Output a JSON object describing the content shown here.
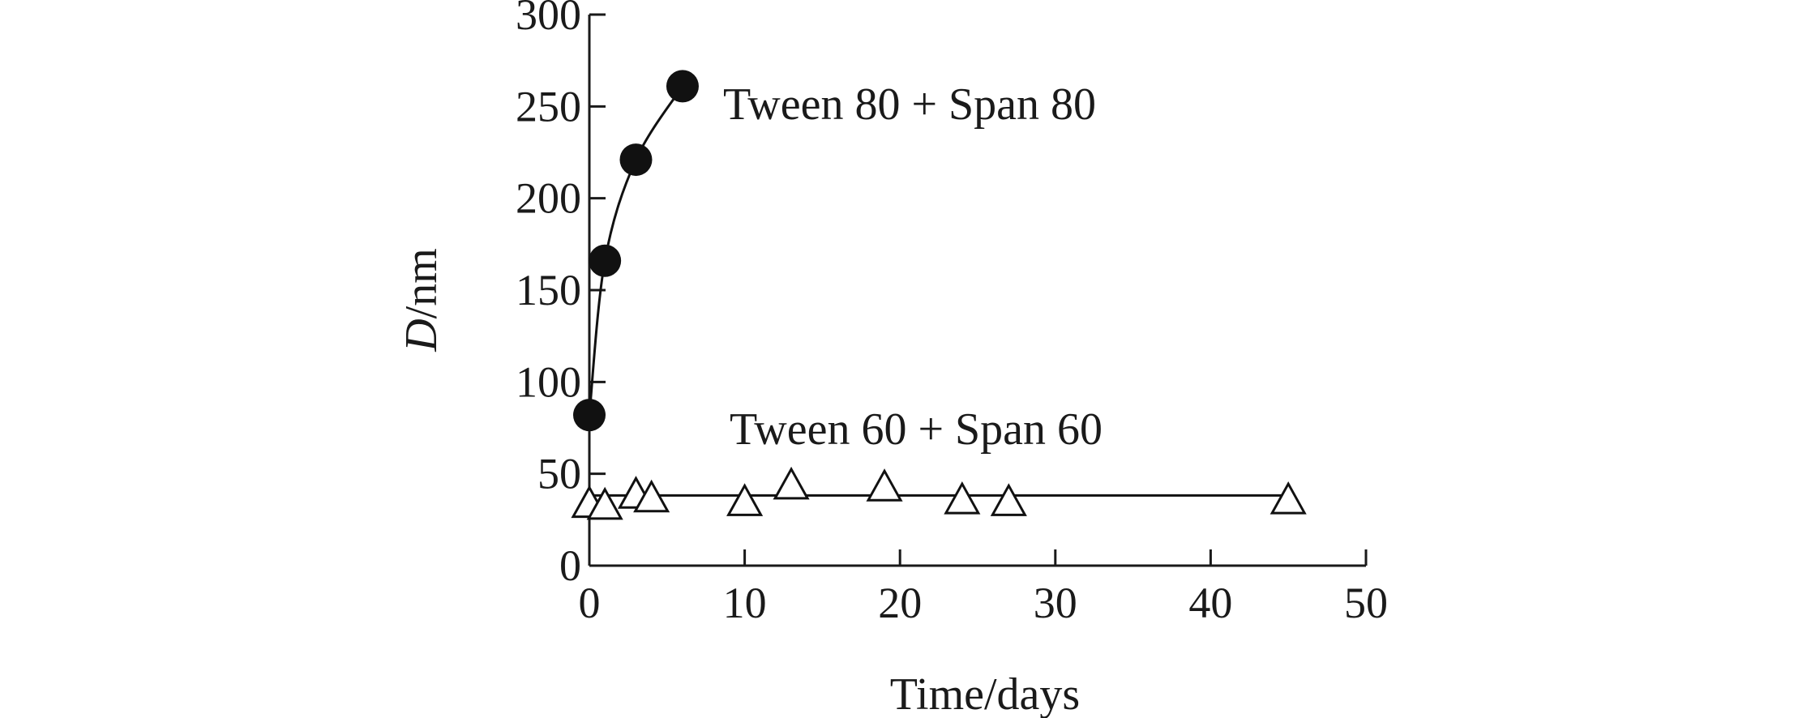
{
  "chart_data": {
    "type": "scatter",
    "title": "",
    "xlabel": "Time/days",
    "ylabel": {
      "var": "D",
      "unit": "/nm"
    },
    "xlim": [
      0,
      50
    ],
    "ylim": [
      0,
      300
    ],
    "xticks": [
      0,
      10,
      20,
      30,
      40,
      50
    ],
    "yticks": [
      0,
      50,
      100,
      150,
      200,
      250,
      300
    ],
    "grid": false,
    "legend": "none",
    "series": [
      {
        "name": "Tween 80 + Span 80",
        "marker": "filled-circle",
        "color": "#111111",
        "x": [
          0,
          1,
          3,
          6
        ],
        "y": [
          82,
          166,
          221,
          261
        ]
      },
      {
        "name": "Tween 60 + Span 60",
        "marker": "open-triangle",
        "color": "#111111",
        "x": [
          0,
          1,
          3,
          4,
          10,
          13,
          19,
          24,
          27,
          45
        ],
        "y": [
          33,
          32,
          38,
          36,
          34,
          43,
          42,
          35,
          34,
          35
        ]
      }
    ]
  }
}
